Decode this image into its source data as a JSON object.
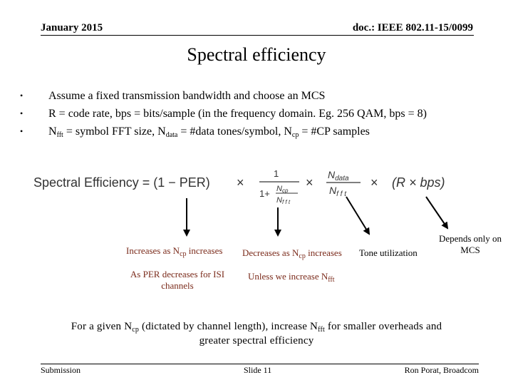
{
  "header": {
    "date": "January 2015",
    "doc": "doc.: IEEE 802.11-15/0099"
  },
  "title": "Spectral efficiency",
  "bullets": [
    {
      "parts": [
        "Assume a fixed transmission bandwidth and choose an MCS"
      ]
    },
    {
      "parts": [
        "R = code rate, bps = bits/sample (in the frequency domain. Eg. 256 QAM, bps = 8)"
      ]
    },
    {
      "p1": "N",
      "s1": "fft",
      "p2": " = symbol FFT size, N",
      "s2": "data",
      "p3": " = #data tones/symbol, N",
      "s3": "cp",
      "p4": " = #CP samples"
    }
  ],
  "formula": {
    "lhs": "Spectral Efficiency = (1 − PER)",
    "times": "×",
    "frac_num": "1",
    "frac_den_prefix": "1+",
    "ncp": "N",
    "ncp_sub": "cp",
    "nfft": "N",
    "nfft_sub": "f f t",
    "ndata": "N",
    "ndata_sub": "data",
    "rbps": "(R × bps)"
  },
  "notes": {
    "n1_a": "Increases as N",
    "n1_sub": "cp",
    "n1_b": " increases",
    "n2_a": "Decreases as N",
    "n2_sub": "cp",
    "n2_b": " increases",
    "n3": "Tone utilization",
    "n4_l1": "Depends only on",
    "n4_l2": "MCS",
    "n5_l1": "As PER decreases for ISI",
    "n5_l2": "channels",
    "n6_a": "Unless we increase N",
    "n6_sub": "fft"
  },
  "conclusion": {
    "a": "For a given N",
    "s1": "cp",
    "b": " (dictated by channel length), increase N",
    "s2": "fft",
    "c": " for smaller overheads and",
    "line2": "greater spectral efficiency"
  },
  "footer": {
    "left": "Submission",
    "center": "Slide 11",
    "right": "Ron Porat, Broadcom"
  }
}
